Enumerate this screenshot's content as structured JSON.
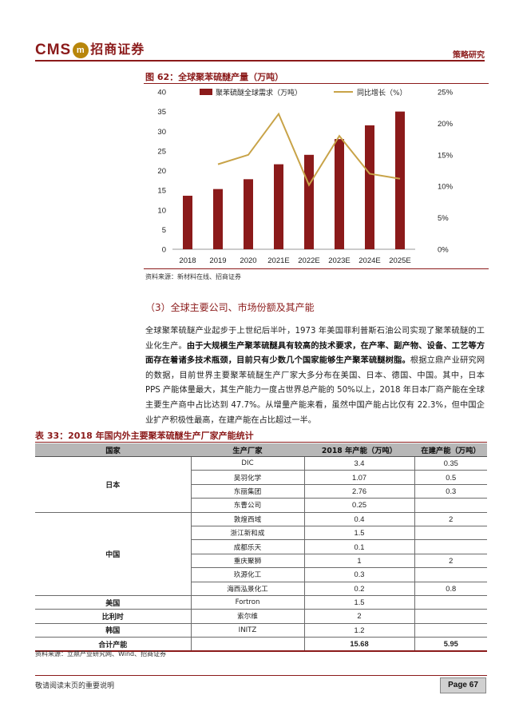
{
  "header": {
    "logo_latin": "CMS",
    "logo_badge": "m",
    "logo_cn": "招商证券",
    "section_tag": "策略研究"
  },
  "figure": {
    "title": "图 62：全球聚苯硫醚产量（万吨）",
    "source": "资料来源：新材料在线、招商证券"
  },
  "chart_data": {
    "type": "bar",
    "title": "图 62：全球聚苯硫醚产量（万吨）",
    "categories": [
      "2018",
      "2019",
      "2020",
      "2021E",
      "2022E",
      "2023E",
      "2024E",
      "2025E"
    ],
    "series": [
      {
        "name": "聚苯硫醚全球需求（万吨）",
        "type": "bar",
        "axis": "left",
        "color": "#8b1a1a",
        "values": [
          13.6,
          15.3,
          17.8,
          21.6,
          24.0,
          28.0,
          31.5,
          35.0
        ]
      },
      {
        "name": "同比增长（%）",
        "type": "line",
        "axis": "right",
        "color": "#c8a348",
        "values": [
          null,
          13.5,
          15.0,
          21.5,
          10.2,
          18.0,
          12.0,
          11.2
        ]
      }
    ],
    "left_axis": {
      "min": 0,
      "max": 40,
      "ticks": [
        0,
        5,
        10,
        15,
        20,
        25,
        30,
        35,
        40
      ]
    },
    "right_axis": {
      "min": 0,
      "max": 25,
      "ticks": [
        "0%",
        "5%",
        "10%",
        "15%",
        "20%",
        "25%"
      ]
    },
    "legend_position": "top",
    "grid": false
  },
  "section": {
    "heading": "（3）全球主要公司、市场份额及其产能"
  },
  "paragraph": {
    "p1": "全球聚苯硫醚产业起步于上世纪后半叶，1973 年美国菲利普斯石油公司实现了聚苯硫醚的工业化生产。",
    "p2_bold": "由于大规模生产聚苯硫醚具有较高的技术要求，在产率、副产物、设备、工艺等方面存在着诸多技术瓶颈，目前只有少数几个国家能够生产聚苯硫醚树脂。",
    "p3": "根据立鼎产业研究网的数据，目前世界主要聚苯硫醚生产厂家大多分布在美国、日本、德国、中国。其中，日本 PPS 产能体量最大，其生产能力一度占世界总产能的 50%以上，2018 年日本厂商产能在全球主要生产商中占比达到 47.7%。从增量产能来看，虽然中国产能占比仅有 22.3%，但中国企业扩产积极性最高，在建产能在占比超过一半。"
  },
  "table": {
    "title": "表 33：2018 年国内外主要聚苯硫醚生产厂家产能统计",
    "headers": [
      "国家",
      "生产厂家",
      "2018 年产能（万吨）",
      "在建产能（万吨）"
    ],
    "groups": [
      {
        "country": "日本",
        "rows": [
          {
            "company": "DIC",
            "capacity": "3.4",
            "building": "0.35"
          },
          {
            "company": "吴羽化学",
            "capacity": "1.07",
            "building": "0.5"
          },
          {
            "company": "东丽集团",
            "capacity": "2.76",
            "building": "0.3"
          },
          {
            "company": "东曹公司",
            "capacity": "0.25",
            "building": ""
          }
        ]
      },
      {
        "country": "中国",
        "rows": [
          {
            "company": "敦煌西域",
            "capacity": "0.4",
            "building": "2"
          },
          {
            "company": "浙江新和成",
            "capacity": "1.5",
            "building": ""
          },
          {
            "company": "成都乐天",
            "capacity": "0.1",
            "building": ""
          },
          {
            "company": "重庆聚狮",
            "capacity": "1",
            "building": "2"
          },
          {
            "company": "玖源化工",
            "capacity": "0.3",
            "building": ""
          },
          {
            "company": "海西泓景化工",
            "capacity": "0.2",
            "building": "0.8"
          }
        ]
      },
      {
        "country": "美国",
        "rows": [
          {
            "company": "Fortron",
            "capacity": "1.5",
            "building": ""
          }
        ]
      },
      {
        "country": "比利时",
        "rows": [
          {
            "company": "索尔维",
            "capacity": "2",
            "building": ""
          }
        ]
      },
      {
        "country": "韩国",
        "rows": [
          {
            "company": "INITZ",
            "capacity": "1.2",
            "building": ""
          }
        ]
      }
    ],
    "total": {
      "label": "合计产能",
      "capacity": "15.68",
      "building": "5.95"
    },
    "source": "资料来源：立鼎产业研究网、Wind、招商证券"
  },
  "footer": {
    "note": "敬请阅读末页的重要说明",
    "page": "Page 67"
  }
}
